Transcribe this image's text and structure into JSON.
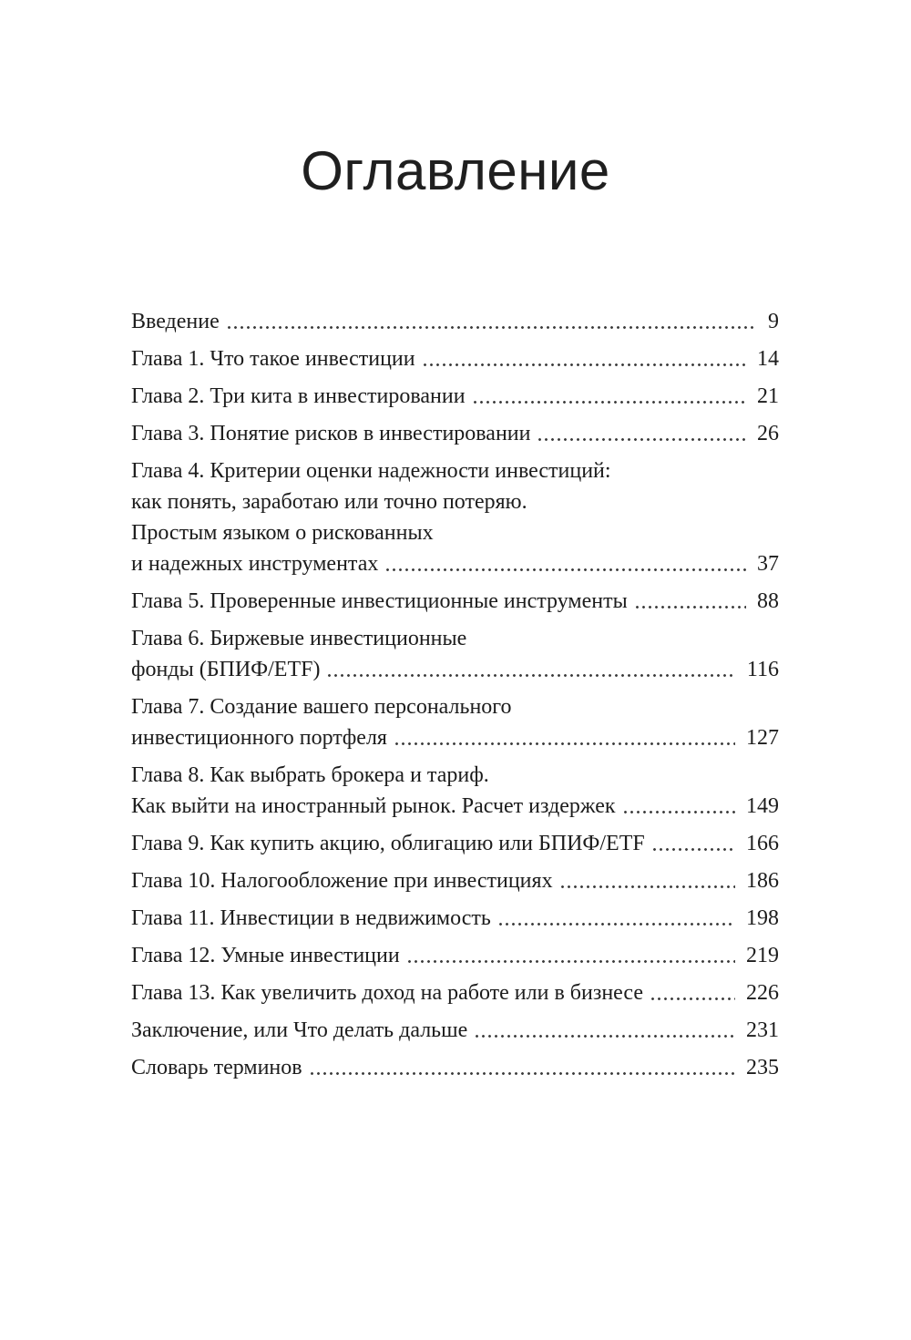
{
  "page": {
    "title": "Оглавление"
  },
  "colors": {
    "background": "#ffffff",
    "text": "#1c1c1c",
    "leader_dots": "#3c3c3c"
  },
  "toc": {
    "entries": [
      {
        "lines": [
          "Введение"
        ],
        "page": "9"
      },
      {
        "lines": [
          "Глава 1. Что такое инвестиции"
        ],
        "page": "14"
      },
      {
        "lines": [
          "Глава 2. Три кита в инвестировании"
        ],
        "page": "21"
      },
      {
        "lines": [
          "Глава 3. Понятие рисков в инвестировании"
        ],
        "page": "26"
      },
      {
        "lines": [
          "Глава 4. Критерии оценки надежности инвестиций:",
          "как понять, заработаю или точно потеряю.",
          "Простым языком о рискованных",
          "и надежных инструментах"
        ],
        "page": "37"
      },
      {
        "lines": [
          "Глава 5. Проверенные инвестиционные инструменты"
        ],
        "page": "88"
      },
      {
        "lines": [
          "Глава 6. Биржевые инвестиционные",
          "фонды (БПИФ/ETF)"
        ],
        "page": "116"
      },
      {
        "lines": [
          "Глава 7. Создание вашего персонального",
          "инвестиционного портфеля"
        ],
        "page": "127"
      },
      {
        "lines": [
          "Глава 8. Как выбрать брокера и тариф.",
          "Как выйти на иностранный рынок. Расчет издержек"
        ],
        "page": "149"
      },
      {
        "lines": [
          "Глава 9. Как купить акцию, облигацию или БПИФ/ETF"
        ],
        "page": "166"
      },
      {
        "lines": [
          "Глава 10. Налогообложение при инвестициях"
        ],
        "page": "186"
      },
      {
        "lines": [
          "Глава 11. Инвестиции в недвижимость"
        ],
        "page": "198"
      },
      {
        "lines": [
          "Глава 12. Умные инвестиции"
        ],
        "page": "219"
      },
      {
        "lines": [
          "Глава 13. Как увеличить доход на работе или в бизнесе"
        ],
        "page": "226"
      },
      {
        "lines": [
          "Заключение, или Что делать дальше"
        ],
        "page": "231"
      },
      {
        "lines": [
          "Словарь терминов"
        ],
        "page": "235"
      }
    ]
  }
}
